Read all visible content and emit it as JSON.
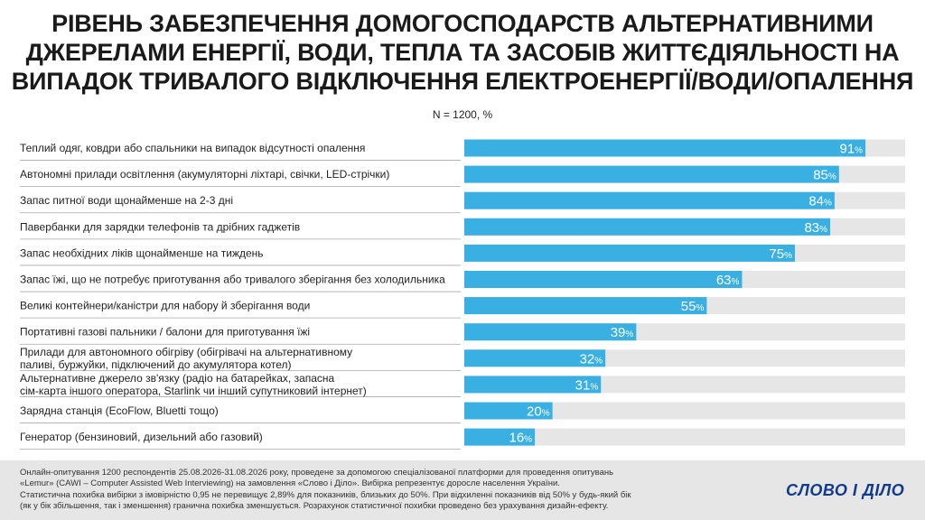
{
  "title_lines": [
    "РІВЕНЬ ЗАБЕЗПЕЧЕННЯ ДОМОГОСПОДАРСТВ АЛЬТЕРНАТИВНИМИ",
    "ДЖЕРЕЛАМИ ЕНЕРГІЇ, ВОДИ, ТЕПЛА ТА ЗАСОБІВ ЖИТТЄДІЯЛЬНОСТІ НА",
    "ВИПАДОК ТРИВАЛОГО ВІДКЛЮЧЕННЯ ЕЛЕКТРОЕНЕРГІЇ/ВОДИ/ОПАЛЕННЯ"
  ],
  "subtitle": "N = 1200, %",
  "chart_data": {
    "type": "bar",
    "orientation": "horizontal",
    "unit": "%",
    "xlim": [
      0,
      100
    ],
    "grid": false,
    "bar_color": "#3ab0e2",
    "track_color": "#e6e6e6",
    "categories": [
      [
        "Теплий одяг, ковдри або спальники на випадок відсутності опалення"
      ],
      [
        "Автономні прилади освітлення (акумуляторні ліхтарі, свічки, LED-стрічки)"
      ],
      [
        "Запас питної води щонайменше на 2-3 дні"
      ],
      [
        "Павербанки для зарядки телефонів та дрібних гаджетів"
      ],
      [
        "Запас необхідних ліків щонайменше на тиждень"
      ],
      [
        "Запас їжі, що не потребує приготування або тривалого зберігання  без холодильника"
      ],
      [
        "Великі контейнери/каністри для набору й зберігання води"
      ],
      [
        "Портативні газові пальники / балони для приготування їжі"
      ],
      [
        "Прилади для автономного обігріву (обігрівачі на альтернативному",
        "паливі, буржуйки, підключений до акумулятора котел)"
      ],
      [
        "Альтернативне джерело зв'язку (радіо на батарейках, запасна",
        "сім-карта іншого оператора, Starlink чи інший супутниковий інтернет)"
      ],
      [
        "Зарядна станція (EcoFlow, Bluetti тощо)"
      ],
      [
        "Генератор (бензиновий, дизельний або газовий)"
      ]
    ],
    "values": [
      91,
      85,
      84,
      83,
      75,
      63,
      55,
      39,
      32,
      31,
      20,
      16
    ]
  },
  "footer": {
    "lines": [
      "Онлайн-опитування 1200 респондентів 25.08.2026-31.08.2026 року, проведене за допомогою спеціалізованої платформи для проведення опитувань",
      "«Lemur» (CAWI – Computer Assisted Web Interviewing) на замовлення «Слово і Діло». Вибірка репрезентує доросле населення України.",
      "Статистична похибка вибірки з імовірністю 0,95 не перевищує 2,89% для показників, близьких до 50%. При відхиленні показників від 50% у будь-який бік",
      "(як у бік збільшення, так і зменшення) гранична похибка зменшується. Розрахунок статистичної похибки проведено без урахування дизайн-ефекту."
    ],
    "logo_text": "СЛОВО І ДІЛО"
  }
}
